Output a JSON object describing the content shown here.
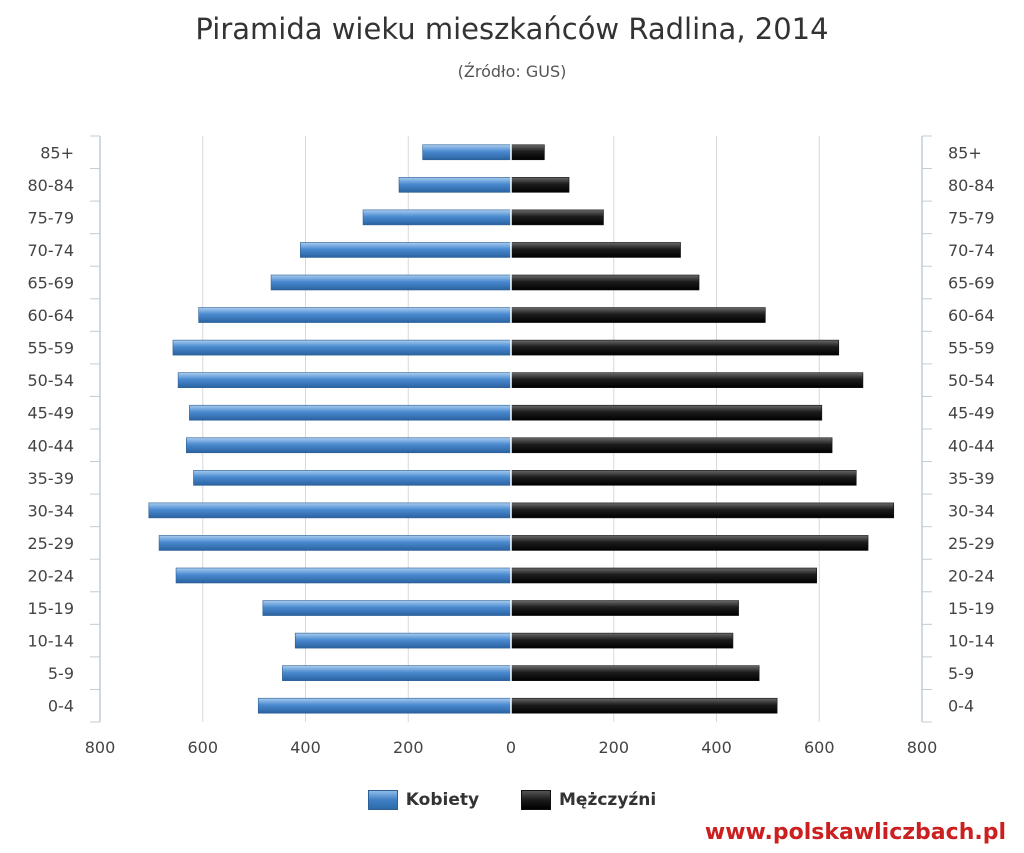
{
  "page": {
    "title": "Piramida wieku mieszkańców Radlina, 2014",
    "subtitle": "(Źródło: GUS)",
    "watermark": "www.polskawliczbach.pl"
  },
  "legend": {
    "women_label": "Kobiety",
    "men_label": "Mężczyźni"
  },
  "colors": {
    "women": "#3f7fc3",
    "men": "#1a1a1a"
  },
  "chart_data": {
    "type": "bar",
    "orientation": "horizontal-pyramid",
    "title": "Piramida wieku mieszkańców Radlina, 2014",
    "subtitle": "(Źródło: GUS)",
    "categories": [
      "85+",
      "80-84",
      "75-79",
      "70-74",
      "65-69",
      "60-64",
      "55-59",
      "50-54",
      "45-49",
      "40-44",
      "35-39",
      "30-34",
      "25-29",
      "20-24",
      "15-19",
      "10-14",
      "5-9",
      "0-4"
    ],
    "series": [
      {
        "name": "Kobiety",
        "side": "left",
        "values": [
          172,
          218,
          288,
          410,
          467,
          608,
          658,
          648,
          626,
          632,
          618,
          705,
          685,
          652,
          483,
          420,
          445,
          492
        ]
      },
      {
        "name": "Mężczyźni",
        "side": "right",
        "values": [
          65,
          113,
          180,
          330,
          366,
          495,
          638,
          685,
          605,
          625,
          672,
          745,
          695,
          595,
          443,
          432,
          483,
          518
        ]
      }
    ],
    "xlim": [
      -800,
      800
    ],
    "x_ticks": [
      -800,
      -600,
      -400,
      -200,
      0,
      200,
      400,
      600,
      800
    ],
    "x_tick_labels": [
      "800",
      "600",
      "400",
      "200",
      "0",
      "200",
      "400",
      "600",
      "800"
    ],
    "grid": true,
    "legend_position": "bottom"
  }
}
